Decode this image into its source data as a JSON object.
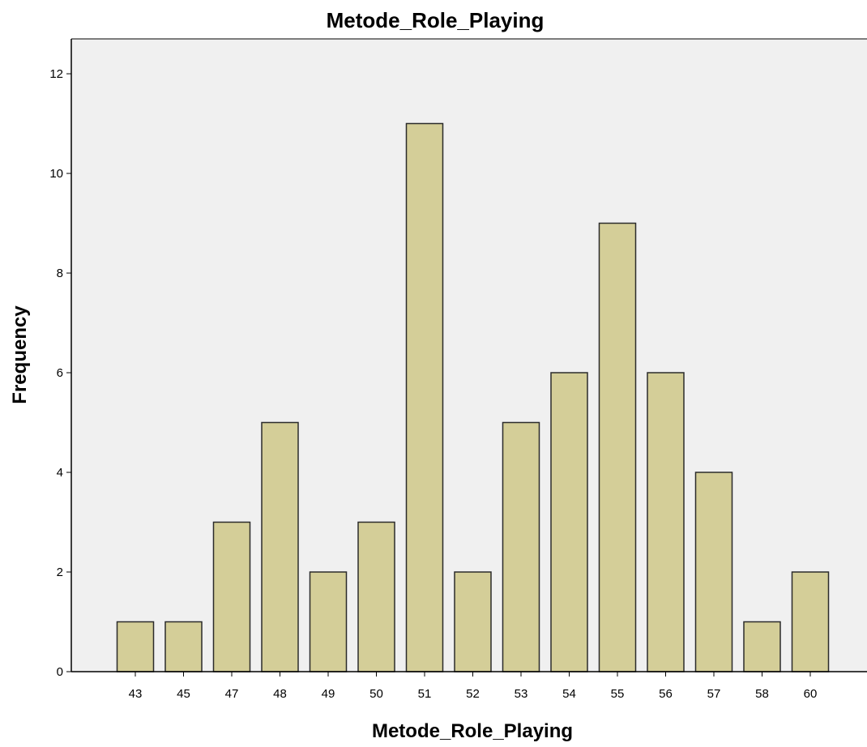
{
  "chart_data": {
    "type": "bar",
    "title": "Metode_Role_Playing",
    "xlabel": "Metode_Role_Playing",
    "ylabel": "Frequency",
    "categories": [
      "43",
      "45",
      "47",
      "48",
      "49",
      "50",
      "51",
      "52",
      "53",
      "54",
      "55",
      "56",
      "57",
      "58",
      "60"
    ],
    "values": [
      1,
      1,
      3,
      5,
      2,
      3,
      11,
      2,
      5,
      6,
      9,
      6,
      4,
      1,
      2
    ],
    "yticks": [
      "0",
      "2",
      "4",
      "6",
      "8",
      "10",
      "12"
    ],
    "ylim": [
      0,
      12.7
    ],
    "grid": false,
    "legend": "none",
    "colors": {
      "bar_fill": "#d4ce98",
      "bar_stroke": "#2b2b2b",
      "plot_background": "#f0f0f0",
      "axis": "#000000"
    }
  }
}
